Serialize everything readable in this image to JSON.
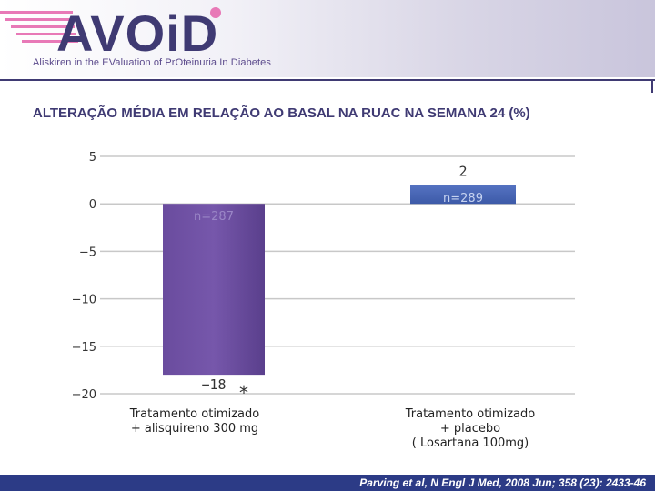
{
  "header": {
    "logo_text": "AVOiD",
    "subtitle": "Aliskiren in the EValuation of PrOteinuria In Diabetes"
  },
  "title": "ALTERAÇÃO MÉDIA EM RELAÇÃO AO BASAL NA RUAC NA SEMANA 24 (%)",
  "footer": {
    "citation": "Parving et al, N Engl J Med, 2008 Jun; 358 (23): 2433-46"
  },
  "colors": {
    "title": "#3f3a73",
    "bar_aliskiren": "#7657ab",
    "bar_placebo": "#3d5aa8",
    "footer": "#2c3b86",
    "logo": "#3f3a73"
  },
  "chart_data": {
    "type": "bar",
    "categories": [
      "Tratamento otimizado\n+ alisquireno 300 mg",
      "Tratamento otimizado\n+ placebo\n( Losartana 100mg)"
    ],
    "values": [
      -18,
      2
    ],
    "value_labels": [
      "−18",
      "2"
    ],
    "n_labels": [
      "n=287",
      "n=289"
    ],
    "significance": [
      "*",
      ""
    ],
    "yticks": [
      5,
      0,
      -5,
      -10,
      -15,
      -20
    ],
    "ytick_labels": [
      "5",
      "0",
      "−5",
      "−10",
      "−15",
      "−20"
    ],
    "ylim": [
      -20,
      5
    ],
    "grid": true
  }
}
